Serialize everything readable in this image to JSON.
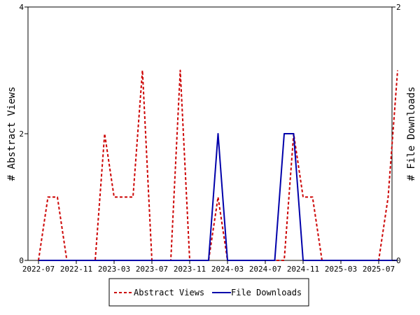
{
  "chart_data": {
    "type": "line",
    "x_ticks": [
      "2022-07",
      "2022-11",
      "2023-03",
      "2023-07",
      "2023-11",
      "2024-03",
      "2024-07",
      "2024-11",
      "2025-03",
      "2025-07"
    ],
    "y_left": {
      "label": "# Abstract Views",
      "ylim": [
        0,
        4
      ],
      "ticks": [
        "0",
        "2",
        "4"
      ]
    },
    "y_right": {
      "label": "# File Downloads",
      "ylim": [
        0,
        2
      ],
      "ticks": [
        "0",
        "2"
      ]
    },
    "grid": false,
    "legend_position": "bottom-center",
    "series": [
      {
        "name": "Abstract Views",
        "axis": "left",
        "color": "#cc0000",
        "dash": "dashed",
        "x": [
          "2022-07",
          "2022-08",
          "2022-09",
          "2022-10",
          "2022-11",
          "2022-12",
          "2023-01",
          "2023-02",
          "2023-03",
          "2023-04",
          "2023-05",
          "2023-06",
          "2023-07",
          "2023-08",
          "2023-09",
          "2023-10",
          "2023-11",
          "2023-12",
          "2024-01",
          "2024-02",
          "2024-03",
          "2024-04",
          "2024-05",
          "2024-06",
          "2024-07",
          "2024-08",
          "2024-09",
          "2024-10",
          "2024-11",
          "2024-12",
          "2025-01",
          "2025-02",
          "2025-03",
          "2025-04",
          "2025-05",
          "2025-06",
          "2025-07",
          "2025-08",
          "2025-09"
        ],
        "values": [
          0,
          1,
          1,
          0,
          0,
          0,
          0,
          2,
          1,
          1,
          1,
          3,
          0,
          0,
          0,
          3,
          0,
          0,
          0,
          1,
          0,
          0,
          0,
          0,
          0,
          0,
          0,
          2,
          1,
          1,
          0,
          0,
          0,
          0,
          0,
          0,
          0,
          1,
          3
        ]
      },
      {
        "name": "File Downloads",
        "axis": "right",
        "color": "#0000aa",
        "dash": "solid",
        "x": [
          "2022-07",
          "2022-08",
          "2022-09",
          "2022-10",
          "2022-11",
          "2022-12",
          "2023-01",
          "2023-02",
          "2023-03",
          "2023-04",
          "2023-05",
          "2023-06",
          "2023-07",
          "2023-08",
          "2023-09",
          "2023-10",
          "2023-11",
          "2023-12",
          "2024-01",
          "2024-02",
          "2024-03",
          "2024-04",
          "2024-05",
          "2024-06",
          "2024-07",
          "2024-08",
          "2024-09",
          "2024-10",
          "2024-11",
          "2024-12",
          "2025-01",
          "2025-02",
          "2025-03",
          "2025-04",
          "2025-05",
          "2025-06",
          "2025-07",
          "2025-08",
          "2025-09"
        ],
        "values": [
          0,
          0,
          0,
          0,
          0,
          0,
          0,
          0,
          0,
          0,
          0,
          0,
          0,
          0,
          0,
          0,
          0,
          0,
          0,
          1,
          0,
          0,
          0,
          0,
          0,
          0,
          1,
          1,
          0,
          0,
          0,
          0,
          0,
          0,
          0,
          0,
          0,
          0,
          0
        ]
      }
    ]
  }
}
